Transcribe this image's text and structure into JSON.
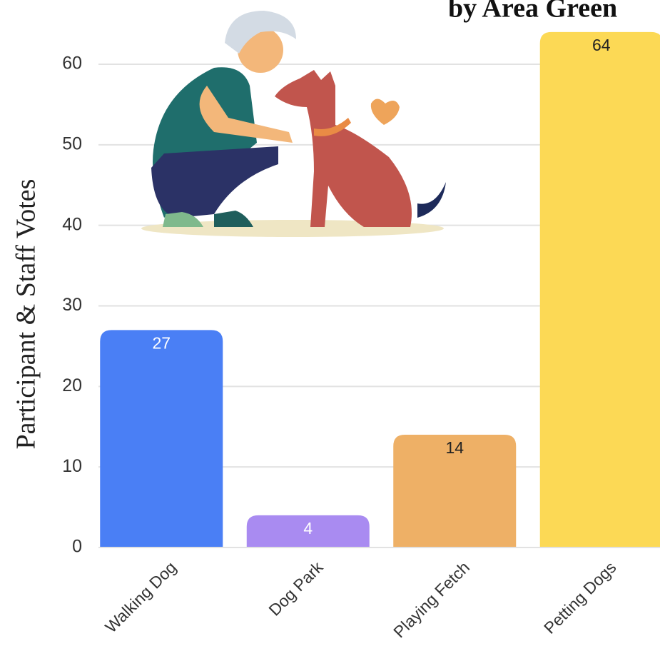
{
  "chart_data": {
    "type": "bar",
    "title": "by Area Green",
    "ylabel": "Participant & Staff Votes",
    "categories": [
      "Walking Dog",
      "Dog Park",
      "Playing Fetch",
      "Petting Dogs"
    ],
    "values": [
      27,
      4,
      14,
      64
    ],
    "colors": [
      "#4a7ff5",
      "#a98bf1",
      "#eeb066",
      "#fcd955"
    ],
    "ylim": [
      0,
      60
    ],
    "yticks": [
      0,
      10,
      20,
      30,
      40,
      50,
      60
    ],
    "grid": true
  }
}
